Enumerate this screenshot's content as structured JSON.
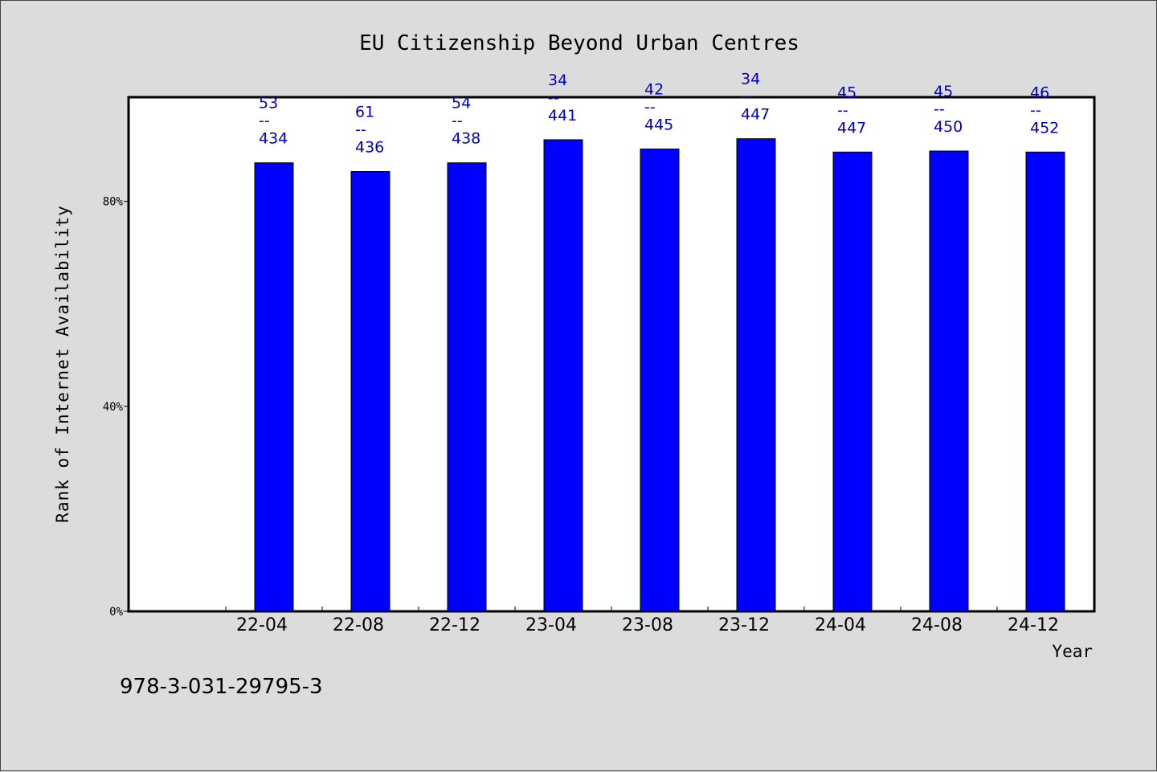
{
  "chart_data": {
    "type": "bar",
    "title": "EU Citizenship Beyond Urban Centres",
    "xlabel": "Year",
    "ylabel": "Rank of Internet Availability",
    "categories": [
      "22-04",
      "22-08",
      "22-12",
      "23-04",
      "23-08",
      "23-12",
      "24-04",
      "24-08",
      "24-12"
    ],
    "values": [
      87.5,
      85.8,
      87.5,
      92.0,
      90.2,
      92.2,
      89.6,
      89.8,
      89.6
    ],
    "data_labels": [
      {
        "top": "53",
        "sep": "--",
        "bottom": "434"
      },
      {
        "top": "61",
        "sep": "--",
        "bottom": "436"
      },
      {
        "top": "54",
        "sep": "--",
        "bottom": "438"
      },
      {
        "top": "34",
        "sep": "--",
        "bottom": "441"
      },
      {
        "top": "42",
        "sep": "--",
        "bottom": "445"
      },
      {
        "top": "34",
        "sep": "--",
        "bottom": "447"
      },
      {
        "top": "45",
        "sep": "--",
        "bottom": "447"
      },
      {
        "top": "45",
        "sep": "--",
        "bottom": "450"
      },
      {
        "top": "46",
        "sep": "--",
        "bottom": "452"
      }
    ],
    "yticks": [
      {
        "value": 0,
        "label": "0%"
      },
      {
        "value": 40,
        "label": "40%"
      },
      {
        "value": 80,
        "label": "80%"
      }
    ],
    "ylim": [
      0,
      100.3
    ],
    "grid": false,
    "colors": {
      "bar": "#0000ff",
      "labels": "#0000cc",
      "background": "#dcdcdc",
      "plot": "#ffffff"
    }
  },
  "footnote": "978-3-031-29795-3"
}
